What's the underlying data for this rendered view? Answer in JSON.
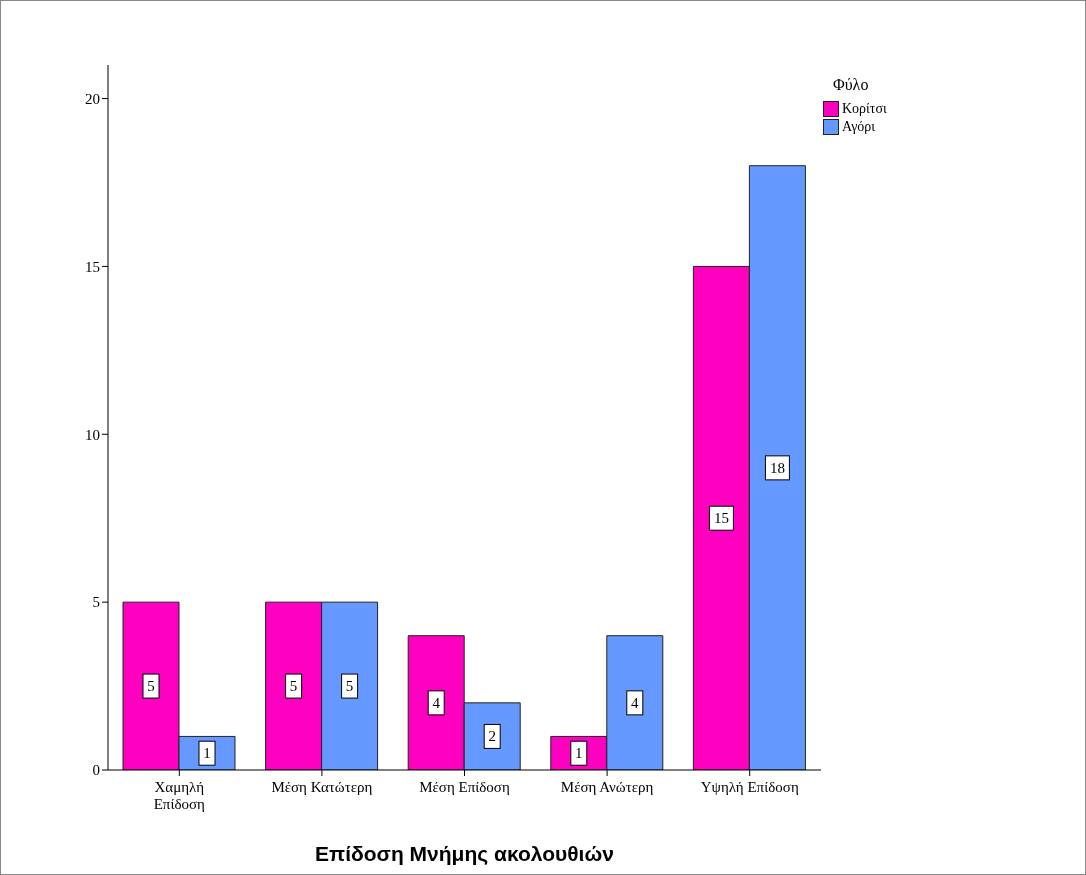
{
  "chart_data": {
    "type": "bar",
    "xlabel": "Επίδοση Μνήμης ακολουθιών",
    "legend_title": "Φύλο",
    "categories": [
      "Χαμηλή Επίδοση",
      "Μέση Κατώτερη",
      "Μέση Επίδοση",
      "Μέση Ανώτερη",
      "Υψηλή Επίδοση"
    ],
    "series": [
      {
        "name": "Κορίτσι",
        "color": "#ff00c0",
        "values": [
          5,
          5,
          4,
          1,
          15
        ]
      },
      {
        "name": "Αγόρι",
        "color": "#6699ff",
        "values": [
          1,
          5,
          2,
          4,
          18
        ]
      }
    ],
    "ylim": [
      0,
      21
    ],
    "yticks": [
      0,
      5,
      10,
      15,
      20
    ],
    "grid": false,
    "legend": "top right",
    "data_labels": true
  }
}
